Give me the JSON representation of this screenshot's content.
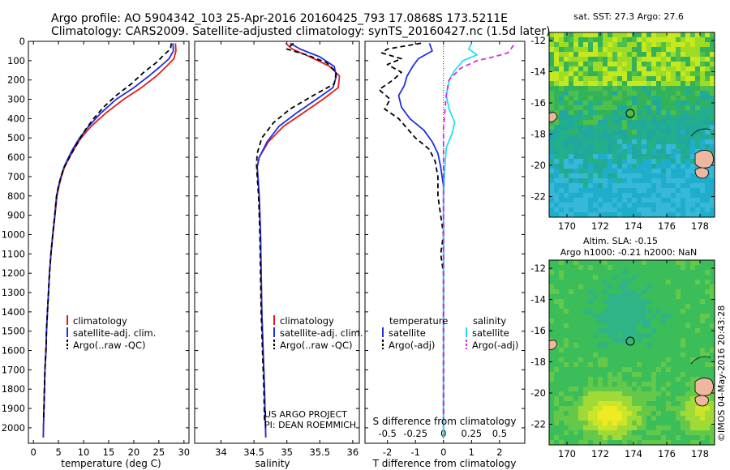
{
  "header": {
    "line1": "Argo profile: AO 5904342_103 25-Apr-2016 20160425_793 17.0868S 173.5211E",
    "line2": "Climatology: CARS2009. Satellite-adjusted climatology: synTS_20160427.nc (1.5d later)"
  },
  "colors": {
    "climatology": "#e31a1c",
    "satellite": "#1f2fe0",
    "argo": "#000000",
    "sal_sat": "#22e0ee",
    "sal_argo": "#e026e0"
  },
  "chart_data": [
    {
      "type": "line",
      "id": "temperature",
      "xlabel": "temperature (deg C)",
      "ylabel": "",
      "xlim": [
        -1,
        31
      ],
      "ylim": [
        2080,
        0
      ],
      "xticks": [
        0,
        5,
        10,
        15,
        20,
        25,
        30
      ],
      "yticks": [
        0,
        100,
        200,
        300,
        400,
        500,
        600,
        700,
        800,
        900,
        1000,
        1100,
        1200,
        1300,
        1400,
        1500,
        1600,
        1700,
        1800,
        1900,
        2000
      ],
      "legend": [
        "climatology",
        "satellite-adj. clim.",
        "Argo(..raw -QC)"
      ],
      "series": [
        {
          "name": "climatology",
          "color": "#e31a1c",
          "dash": "",
          "points": [
            [
              28.3,
              10
            ],
            [
              28.4,
              50
            ],
            [
              28.0,
              90
            ],
            [
              26.5,
              130
            ],
            [
              24.5,
              180
            ],
            [
              21.5,
              240
            ],
            [
              18.0,
              300
            ],
            [
              14.5,
              370
            ],
            [
              11.5,
              440
            ],
            [
              9.5,
              500
            ],
            [
              8.3,
              550
            ],
            [
              7.2,
              600
            ],
            [
              6.2,
              650
            ],
            [
              5.6,
              700
            ],
            [
              5.1,
              750
            ],
            [
              4.7,
              800
            ],
            [
              4.3,
              900
            ],
            [
              3.9,
              1000
            ],
            [
              3.5,
              1100
            ],
            [
              3.2,
              1200
            ],
            [
              3.0,
              1300
            ],
            [
              2.8,
              1400
            ],
            [
              2.6,
              1500
            ],
            [
              2.5,
              1600
            ],
            [
              2.3,
              1700
            ],
            [
              2.2,
              1800
            ],
            [
              2.1,
              1900
            ],
            [
              2.0,
              2000
            ],
            [
              1.95,
              2050
            ]
          ]
        },
        {
          "name": "satellite-adj. clim.",
          "color": "#1f2fe0",
          "dash": "",
          "points": [
            [
              27.8,
              10
            ],
            [
              27.9,
              50
            ],
            [
              27.0,
              90
            ],
            [
              25.3,
              130
            ],
            [
              23.0,
              180
            ],
            [
              20.0,
              240
            ],
            [
              16.5,
              300
            ],
            [
              13.5,
              370
            ],
            [
              11.0,
              440
            ],
            [
              9.2,
              500
            ],
            [
              8.0,
              550
            ],
            [
              7.0,
              600
            ],
            [
              6.1,
              650
            ],
            [
              5.5,
              700
            ],
            [
              5.0,
              750
            ],
            [
              4.6,
              800
            ],
            [
              4.25,
              900
            ],
            [
              3.85,
              1000
            ],
            [
              3.5,
              1100
            ],
            [
              3.2,
              1200
            ],
            [
              3.0,
              1300
            ],
            [
              2.8,
              1400
            ],
            [
              2.6,
              1500
            ],
            [
              2.5,
              1600
            ],
            [
              2.3,
              1700
            ],
            [
              2.2,
              1800
            ],
            [
              2.1,
              1900
            ],
            [
              2.0,
              2000
            ],
            [
              1.95,
              2050
            ]
          ]
        },
        {
          "name": "Argo(..raw -QC)",
          "color": "#000000",
          "dash": "6,4",
          "points": [
            [
              27.5,
              10
            ],
            [
              27.3,
              40
            ],
            [
              26.0,
              70
            ],
            [
              24.5,
              110
            ],
            [
              22.0,
              160
            ],
            [
              19.5,
              220
            ],
            [
              16.5,
              280
            ],
            [
              14.0,
              340
            ],
            [
              12.0,
              400
            ],
            [
              10.3,
              460
            ],
            [
              8.9,
              520
            ],
            [
              7.8,
              570
            ],
            [
              6.8,
              620
            ],
            [
              6.0,
              660
            ],
            [
              5.5,
              700
            ],
            [
              5.0,
              750
            ],
            [
              4.6,
              800
            ],
            [
              4.25,
              900
            ],
            [
              3.85,
              1000
            ],
            [
              3.5,
              1100
            ],
            [
              3.2,
              1200
            ],
            [
              3.0,
              1300
            ],
            [
              2.8,
              1400
            ],
            [
              2.6,
              1500
            ],
            [
              2.5,
              1600
            ],
            [
              2.3,
              1700
            ],
            [
              2.2,
              1800
            ],
            [
              2.1,
              1900
            ],
            [
              2.0,
              1960
            ]
          ]
        }
      ]
    },
    {
      "type": "line",
      "id": "salinity",
      "xlabel": "salinity",
      "xlim": [
        33.6,
        36.1
      ],
      "ylim": [
        2080,
        0
      ],
      "xticks": [
        34,
        34.5,
        35,
        35.5,
        36
      ],
      "legend": [
        "climatology",
        "satellite-adj. clim.",
        "Argo(..raw -QC)"
      ],
      "series": [
        {
          "name": "climatology",
          "color": "#e31a1c",
          "dash": "",
          "points": [
            [
              34.98,
              10
            ],
            [
              35.08,
              40
            ],
            [
              35.35,
              80
            ],
            [
              35.65,
              130
            ],
            [
              35.8,
              180
            ],
            [
              35.78,
              240
            ],
            [
              35.55,
              300
            ],
            [
              35.25,
              370
            ],
            [
              34.95,
              440
            ],
            [
              34.72,
              520
            ],
            [
              34.58,
              600
            ],
            [
              34.55,
              650
            ],
            [
              34.56,
              700
            ],
            [
              34.58,
              800
            ],
            [
              34.59,
              900
            ],
            [
              34.6,
              1000
            ],
            [
              34.61,
              1200
            ],
            [
              34.62,
              1400
            ],
            [
              34.64,
              1600
            ],
            [
              34.66,
              1800
            ],
            [
              34.67,
              1950
            ],
            [
              34.68,
              2050
            ]
          ]
        },
        {
          "name": "satellite-adj. clim.",
          "color": "#1f2fe0",
          "dash": "",
          "points": [
            [
              35.05,
              10
            ],
            [
              35.2,
              40
            ],
            [
              35.5,
              80
            ],
            [
              35.72,
              130
            ],
            [
              35.75,
              180
            ],
            [
              35.7,
              240
            ],
            [
              35.45,
              300
            ],
            [
              35.15,
              370
            ],
            [
              34.88,
              440
            ],
            [
              34.7,
              520
            ],
            [
              34.58,
              600
            ],
            [
              34.55,
              650
            ],
            [
              34.56,
              700
            ],
            [
              34.58,
              800
            ],
            [
              34.59,
              900
            ],
            [
              34.6,
              1000
            ],
            [
              34.61,
              1200
            ],
            [
              34.62,
              1400
            ],
            [
              34.64,
              1600
            ],
            [
              34.66,
              1800
            ],
            [
              34.67,
              1950
            ],
            [
              34.68,
              2050
            ]
          ]
        },
        {
          "name": "Argo(..raw -QC)",
          "color": "#000000",
          "dash": "6,4",
          "points": [
            [
              35.1,
              10
            ],
            [
              35.0,
              40
            ],
            [
              35.3,
              70
            ],
            [
              35.6,
              110
            ],
            [
              35.75,
              160
            ],
            [
              35.72,
              220
            ],
            [
              35.4,
              280
            ],
            [
              35.05,
              350
            ],
            [
              34.8,
              420
            ],
            [
              34.62,
              500
            ],
            [
              34.55,
              580
            ],
            [
              34.54,
              640
            ],
            [
              34.55,
              700
            ],
            [
              34.57,
              800
            ],
            [
              34.58,
              900
            ],
            [
              34.59,
              1000
            ],
            [
              34.6,
              1200
            ],
            [
              34.61,
              1400
            ],
            [
              34.63,
              1600
            ],
            [
              34.65,
              1800
            ],
            [
              34.66,
              1960
            ]
          ]
        }
      ]
    },
    {
      "type": "line",
      "id": "differences",
      "xlabel": "T difference from climatology",
      "xlabel_top": "S difference from climatology",
      "xlim": [
        -2.8,
        2.9
      ],
      "ylim": [
        2080,
        0
      ],
      "xticks": [
        -2,
        -1,
        0,
        1,
        2
      ],
      "xticks_top": [
        "-0.5",
        "-0.25",
        "0",
        "0.25",
        "0.5"
      ],
      "xticks_top_pos": [
        -2,
        -1,
        0,
        1,
        2
      ],
      "legend_left_title": "temperature",
      "legend_right_title": "salinity",
      "legend_left": [
        "satellite",
        "Argo(-adj)"
      ],
      "legend_right": [
        "satellite",
        "Argo(-adj)"
      ],
      "series": [
        {
          "name": "T satellite",
          "color": "#1f2fe0",
          "dash": "",
          "points": [
            [
              -0.5,
              10
            ],
            [
              -0.4,
              50
            ],
            [
              -0.9,
              90
            ],
            [
              -1.1,
              130
            ],
            [
              -1.3,
              180
            ],
            [
              -1.4,
              230
            ],
            [
              -1.6,
              280
            ],
            [
              -1.5,
              340
            ],
            [
              -1.2,
              400
            ],
            [
              -0.7,
              460
            ],
            [
              -0.4,
              520
            ],
            [
              -0.2,
              580
            ],
            [
              -0.1,
              650
            ],
            [
              0,
              750
            ],
            [
              0,
              900
            ],
            [
              0,
              1200
            ],
            [
              0,
              1600
            ],
            [
              0,
              2050
            ]
          ]
        },
        {
          "name": "T Argo(-adj)",
          "color": "#000000",
          "dash": "6,4",
          "points": [
            [
              -0.8,
              10
            ],
            [
              -2.0,
              40
            ],
            [
              -2.2,
              60
            ],
            [
              -1.5,
              90
            ],
            [
              -2.0,
              120
            ],
            [
              -1.5,
              160
            ],
            [
              -1.8,
              200
            ],
            [
              -2.3,
              250
            ],
            [
              -1.9,
              300
            ],
            [
              -2.1,
              350
            ],
            [
              -1.6,
              400
            ],
            [
              -1.3,
              450
            ],
            [
              -1.0,
              500
            ],
            [
              -0.5,
              560
            ],
            [
              -0.3,
              620
            ],
            [
              -0.2,
              700
            ],
            [
              -0.2,
              800
            ],
            [
              -0.1,
              900
            ],
            [
              0,
              1000
            ],
            [
              -0.1,
              1100
            ],
            [
              0,
              1200
            ],
            [
              0,
              1400
            ],
            [
              0,
              1600
            ],
            [
              0,
              1800
            ],
            [
              0,
              1960
            ]
          ]
        },
        {
          "name": "S satellite",
          "color": "#22e0ee",
          "dash": "",
          "points": [
            [
              1.0,
              10
            ],
            [
              0.9,
              40
            ],
            [
              1.2,
              70
            ],
            [
              0.7,
              100
            ],
            [
              0.4,
              150
            ],
            [
              0.2,
              200
            ],
            [
              0.1,
              280
            ],
            [
              0.2,
              350
            ],
            [
              0.4,
              420
            ],
            [
              0.3,
              480
            ],
            [
              0.1,
              550
            ],
            [
              0.05,
              650
            ],
            [
              0,
              800
            ],
            [
              0,
              1000
            ],
            [
              0,
              1400
            ],
            [
              0,
              2050
            ]
          ]
        },
        {
          "name": "S Argo(-adj)",
          "color": "#e026e0",
          "dash": "6,4",
          "points": [
            [
              2.5,
              20
            ],
            [
              2.3,
              60
            ],
            [
              1.8,
              80
            ],
            [
              1.2,
              100
            ],
            [
              0.6,
              140
            ],
            [
              0.2,
              200
            ],
            [
              0.1,
              280
            ],
            [
              0.05,
              360
            ],
            [
              0,
              450
            ],
            [
              0,
              600
            ],
            [
              0,
              800
            ],
            [
              0,
              1000
            ],
            [
              0,
              1400
            ],
            [
              0,
              1960
            ]
          ]
        }
      ]
    }
  ],
  "maps": {
    "sst": {
      "title": "sat. SST: 27.3 Argo: 27.6",
      "yticks": [
        "-12",
        "-14",
        "-16",
        "-18",
        "-20",
        "-22"
      ],
      "xticks": [
        "170",
        "172",
        "174",
        "176",
        "178"
      ]
    },
    "sla": {
      "title1": "Altim. SLA: -0.15",
      "title2": "Argo h1000: -0.21 h2000: NaN",
      "yticks": [
        "-12",
        "-14",
        "-16",
        "-18",
        "-20",
        "-22"
      ],
      "xticks": [
        "170",
        "172",
        "174",
        "176",
        "178"
      ]
    }
  },
  "annotations": {
    "project": "US ARGO PROJECT",
    "pi": "PI: DEAN ROEMMICH",
    "imos": "©IMOS 04-May-2016 20:43:28"
  }
}
